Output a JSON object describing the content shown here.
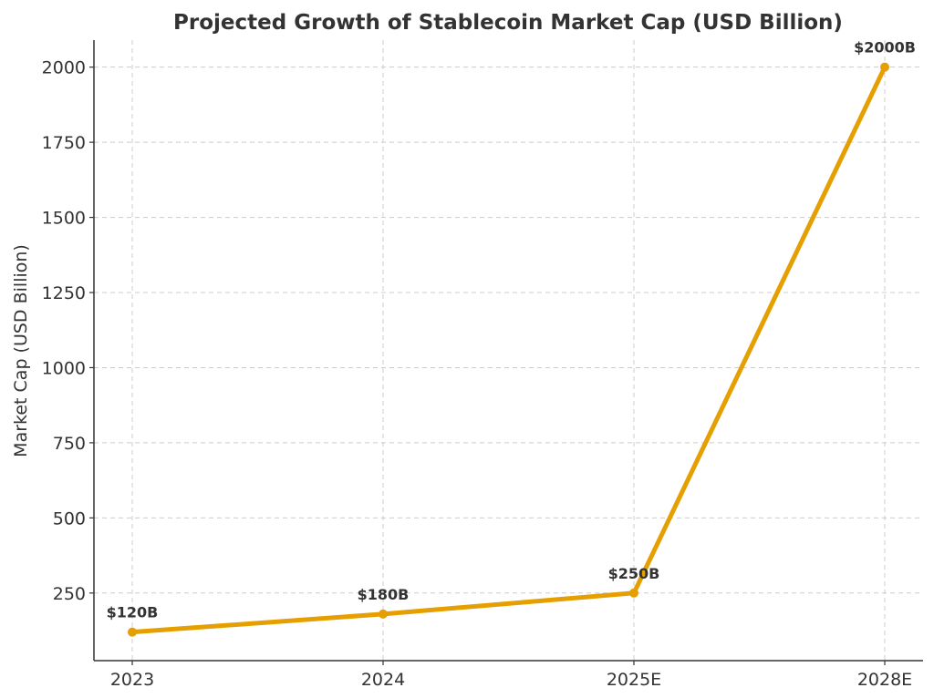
{
  "chart_data": {
    "type": "line",
    "title": "Projected Growth of Stablecoin Market Cap (USD Billion)",
    "xlabel": "",
    "ylabel": "Market Cap (USD Billion)",
    "categories": [
      "2023",
      "2024",
      "2025E",
      "2028E"
    ],
    "series": [
      {
        "values": [
          120,
          180,
          250,
          2000
        ],
        "labels": [
          "$120B",
          "$180B",
          "$250B",
          "$2000B"
        ],
        "color": "#e69f00"
      }
    ],
    "yticks": [
      250,
      500,
      750,
      1000,
      1250,
      1500,
      1750,
      2000
    ],
    "ylim": [
      25,
      2090
    ],
    "grid": true
  }
}
